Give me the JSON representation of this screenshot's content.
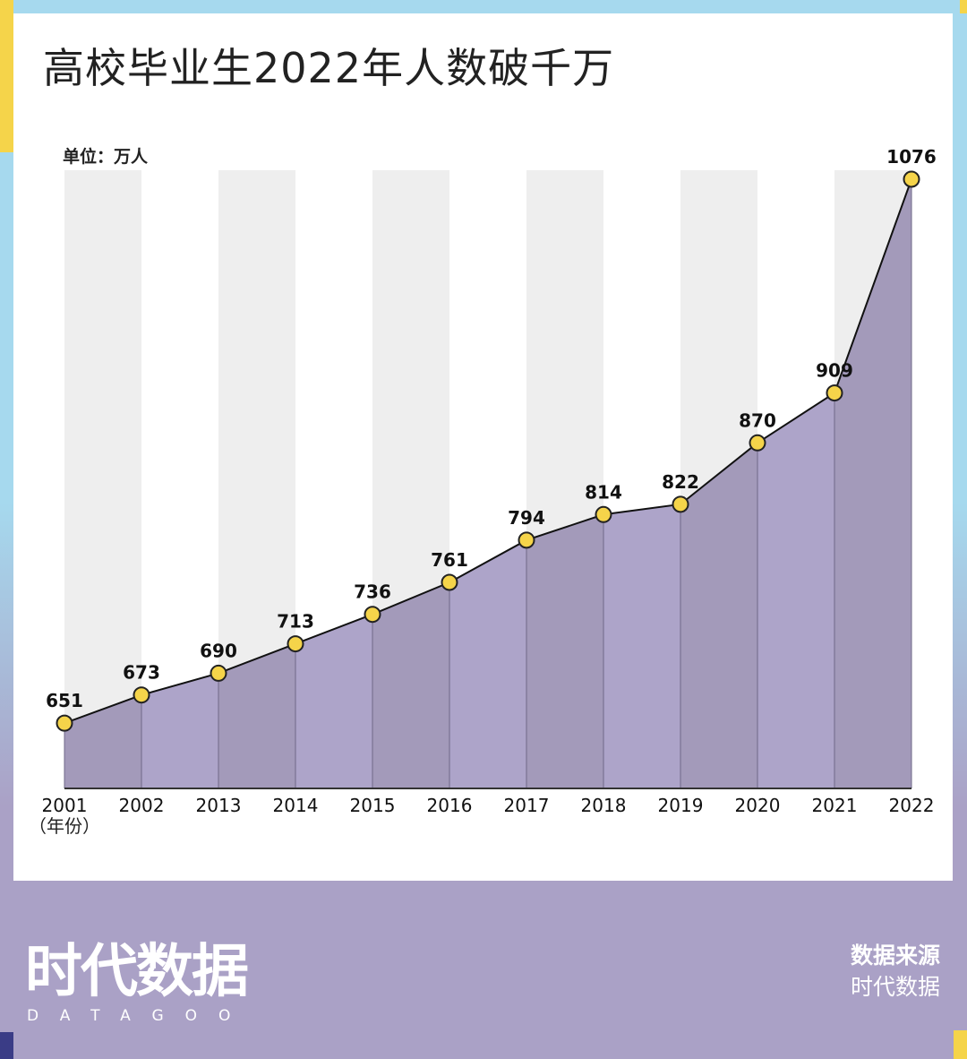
{
  "title": "高校毕业生2022年人数破千万",
  "unit_label": "单位：万人",
  "x_unit_note": "（年份）",
  "footer": {
    "logo_cn": "时代数据",
    "logo_en": "DATAGOO",
    "source_label": "数据来源",
    "source_name": "时代数据"
  },
  "colors": {
    "area_fill_dark": "#a39aba",
    "area_fill_light": "#ada4c9",
    "band_gray": "#eeeeee",
    "marker": "#f5d44a",
    "accent_blue": "#a6d9ee",
    "accent_yellow": "#f5d44a",
    "footer_purple": "#aaa1c6"
  },
  "chart_data": {
    "type": "area",
    "title": "高校毕业生2022年人数破千万",
    "ylabel": "单位：万人",
    "xlabel": "（年份）",
    "categories": [
      "2001",
      "2002",
      "2013",
      "2014",
      "2015",
      "2016",
      "2017",
      "2018",
      "2019",
      "2020",
      "2021",
      "2022"
    ],
    "values": [
      651,
      673,
      690,
      713,
      736,
      761,
      794,
      814,
      822,
      870,
      909,
      1076
    ],
    "ylim": [
      600,
      1076
    ],
    "grid": false,
    "legend": "none",
    "data_labels": true
  }
}
